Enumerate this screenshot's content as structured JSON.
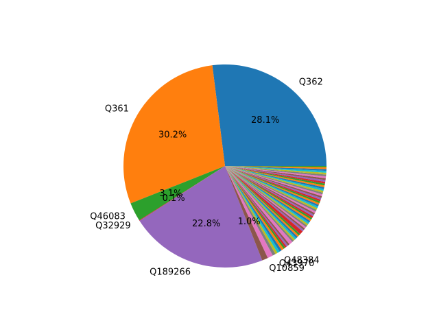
{
  "chart_data": {
    "type": "pie",
    "slices": [
      {
        "label": "Q362",
        "value": 28.1,
        "pct_label": "28.1%",
        "color": "#1f77b4"
      },
      {
        "label": "Q361",
        "value": 30.2,
        "pct_label": "30.2%",
        "color": "#ff7f0e"
      },
      {
        "label": "Q46083",
        "value": 3.1,
        "pct_label": "3.1%",
        "color": "#2ca02c"
      },
      {
        "label": "Q32929",
        "value": 0.1,
        "pct_label": "0.1%",
        "color": "#d62728"
      },
      {
        "label": "Q189266",
        "value": 22.8,
        "pct_label": "22.8%",
        "color": "#9467bd"
      },
      {
        "label": "Q10859",
        "value": 1.0,
        "pct_label": "1.0%",
        "color": "#8c564b"
      },
      {
        "label": "",
        "value": 0.9,
        "pct_label": "",
        "color": "#e377c2"
      },
      {
        "label": "Q43970",
        "value": 0.5,
        "pct_label": "",
        "color": "#7f7f7f"
      },
      {
        "label": "",
        "value": 0.4,
        "pct_label": "",
        "color": "#bcbd22"
      },
      {
        "label": "Q48384",
        "value": 0.4,
        "pct_label": "",
        "color": "#17becf"
      },
      {
        "label": "",
        "value": 0.4,
        "pct_label": "",
        "color": "#1f77b4"
      },
      {
        "label": "",
        "value": 0.4,
        "pct_label": "",
        "color": "#ff7f0e"
      },
      {
        "label": "",
        "value": 0.3,
        "pct_label": "",
        "color": "#2ca02c"
      },
      {
        "label": "",
        "value": 0.3,
        "pct_label": "",
        "color": "#d62728"
      },
      {
        "label": "",
        "value": 0.3,
        "pct_label": "",
        "color": "#9467bd"
      },
      {
        "label": "",
        "value": 0.3,
        "pct_label": "",
        "color": "#8c564b"
      },
      {
        "label": "",
        "value": 0.6,
        "pct_label": "",
        "color": "#e377c2"
      },
      {
        "label": "",
        "value": 0.3,
        "pct_label": "",
        "color": "#7f7f7f"
      },
      {
        "label": "",
        "value": 0.3,
        "pct_label": "",
        "color": "#bcbd22"
      },
      {
        "label": "",
        "value": 0.3,
        "pct_label": "",
        "color": "#17becf"
      },
      {
        "label": "",
        "value": 0.3,
        "pct_label": "",
        "color": "#1f77b4"
      },
      {
        "label": "",
        "value": 0.3,
        "pct_label": "",
        "color": "#ff7f0e"
      },
      {
        "label": "",
        "value": 0.3,
        "pct_label": "",
        "color": "#2ca02c"
      },
      {
        "label": "",
        "value": 0.6,
        "pct_label": "",
        "color": "#d62728"
      },
      {
        "label": "",
        "value": 0.3,
        "pct_label": "",
        "color": "#9467bd"
      },
      {
        "label": "",
        "value": 0.3,
        "pct_label": "",
        "color": "#8c564b"
      },
      {
        "label": "",
        "value": 0.3,
        "pct_label": "",
        "color": "#e377c2"
      },
      {
        "label": "",
        "value": 0.3,
        "pct_label": "",
        "color": "#7f7f7f"
      },
      {
        "label": "",
        "value": 0.3,
        "pct_label": "",
        "color": "#bcbd22"
      },
      {
        "label": "",
        "value": 0.3,
        "pct_label": "",
        "color": "#17becf"
      },
      {
        "label": "",
        "value": 0.3,
        "pct_label": "",
        "color": "#1f77b4"
      },
      {
        "label": "",
        "value": 0.3,
        "pct_label": "",
        "color": "#ff7f0e"
      },
      {
        "label": "",
        "value": 0.3,
        "pct_label": "",
        "color": "#2ca02c"
      },
      {
        "label": "",
        "value": 0.3,
        "pct_label": "",
        "color": "#d62728"
      },
      {
        "label": "",
        "value": 0.3,
        "pct_label": "",
        "color": "#9467bd"
      },
      {
        "label": "",
        "value": 0.3,
        "pct_label": "",
        "color": "#8c564b"
      },
      {
        "label": "",
        "value": 0.3,
        "pct_label": "",
        "color": "#e377c2"
      },
      {
        "label": "",
        "value": 0.3,
        "pct_label": "",
        "color": "#7f7f7f"
      },
      {
        "label": "",
        "value": 0.3,
        "pct_label": "",
        "color": "#bcbd22"
      },
      {
        "label": "",
        "value": 0.3,
        "pct_label": "",
        "color": "#17becf"
      },
      {
        "label": "",
        "value": 0.3,
        "pct_label": "",
        "color": "#1f77b4"
      },
      {
        "label": "",
        "value": 0.3,
        "pct_label": "",
        "color": "#ff7f0e"
      },
      {
        "label": "",
        "value": 0.3,
        "pct_label": "",
        "color": "#2ca02c"
      },
      {
        "label": "",
        "value": 0.3,
        "pct_label": "",
        "color": "#d62728"
      },
      {
        "label": "",
        "value": 0.3,
        "pct_label": "",
        "color": "#9467bd"
      },
      {
        "label": "",
        "value": 0.3,
        "pct_label": "",
        "color": "#8c564b"
      },
      {
        "label": "",
        "value": 0.3,
        "pct_label": "",
        "color": "#e377c2"
      },
      {
        "label": "",
        "value": 0.3,
        "pct_label": "",
        "color": "#7f7f7f"
      },
      {
        "label": "",
        "value": 0.3,
        "pct_label": "",
        "color": "#bcbd22"
      },
      {
        "label": "",
        "value": 0.3,
        "pct_label": "",
        "color": "#17becf"
      },
      {
        "label": "",
        "value": 0.3,
        "pct_label": "",
        "color": "#1f77b4"
      },
      {
        "label": "",
        "value": 0.3,
        "pct_label": "",
        "color": "#ff7f0e"
      },
      {
        "label": "",
        "value": 0.3,
        "pct_label": "",
        "color": "#2ca02c"
      },
      {
        "label": "",
        "value": 0.3,
        "pct_label": "",
        "color": "#d62728"
      },
      {
        "label": "",
        "value": 0.3,
        "pct_label": "",
        "color": "#9467bd"
      },
      {
        "label": "",
        "value": 0.3,
        "pct_label": "",
        "color": "#8c564b"
      },
      {
        "label": "",
        "value": 0.3,
        "pct_label": "",
        "color": "#e377c2"
      },
      {
        "label": "",
        "value": 0.3,
        "pct_label": "",
        "color": "#7f7f7f"
      },
      {
        "label": "",
        "value": 0.3,
        "pct_label": "",
        "color": "#bcbd22"
      },
      {
        "label": "",
        "value": 0.3,
        "pct_label": "",
        "color": "#17becf"
      },
      {
        "label": "",
        "value": 0.3,
        "pct_label": "",
        "color": "#1f77b4"
      },
      {
        "label": "",
        "value": 0.3,
        "pct_label": "",
        "color": "#ff7f0e"
      },
      {
        "label": "",
        "value": 0.2,
        "pct_label": "",
        "color": "#2ca02c"
      }
    ],
    "start_angle_deg": 0,
    "direction": "counterclockwise",
    "title": "",
    "legend": "none"
  }
}
